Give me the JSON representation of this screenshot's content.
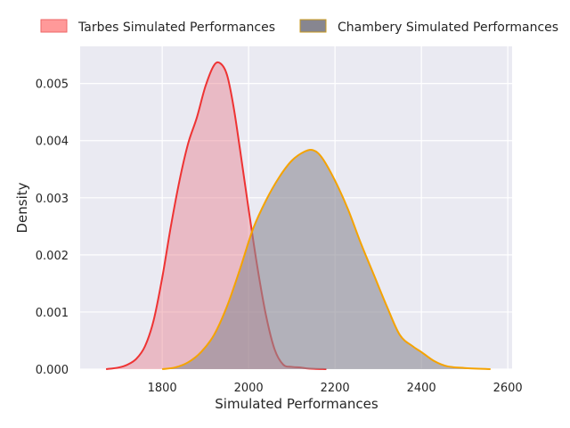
{
  "chart_data": {
    "type": "area",
    "title": "",
    "xlabel": "Simulated Performances",
    "ylabel": "Density",
    "xlim": [
      1610,
      2610
    ],
    "ylim": [
      0,
      0.00565
    ],
    "x_ticks": [
      1800,
      2000,
      2200,
      2400,
      2600
    ],
    "y_ticks": [
      0.0,
      0.001,
      0.002,
      0.003,
      0.004,
      0.005
    ],
    "x_tick_labels": [
      "1800",
      "2000",
      "2200",
      "2400",
      "2600"
    ],
    "y_tick_labels": [
      "0.000",
      "0.001",
      "0.002",
      "0.003",
      "0.004",
      "0.005"
    ],
    "grid": true,
    "legend_position": "top, outside plot, two columns",
    "style": {
      "plot_background": "#eaeaf2",
      "grid_color": "#ffffff"
    },
    "series": [
      {
        "name": "Tarbes Simulated Performances",
        "line_color": "#ee3333",
        "fill_color": "#e8808f",
        "fill_opacity": 0.45,
        "legend_fill": "#ff9999",
        "legend_edge": "#ee6666",
        "points": [
          [
            1670,
            0.0
          ],
          [
            1700,
            3e-05
          ],
          [
            1720,
            8e-05
          ],
          [
            1740,
            0.00018
          ],
          [
            1760,
            0.0004
          ],
          [
            1780,
            0.00085
          ],
          [
            1800,
            0.0016
          ],
          [
            1820,
            0.0025
          ],
          [
            1840,
            0.0033
          ],
          [
            1860,
            0.00395
          ],
          [
            1880,
            0.0044
          ],
          [
            1900,
            0.00495
          ],
          [
            1920,
            0.00532
          ],
          [
            1935,
            0.00535
          ],
          [
            1950,
            0.00515
          ],
          [
            1965,
            0.0046
          ],
          [
            1980,
            0.00385
          ],
          [
            2000,
            0.0028
          ],
          [
            2020,
            0.0018
          ],
          [
            2040,
            0.00095
          ],
          [
            2060,
            0.00035
          ],
          [
            2080,
            8e-05
          ],
          [
            2100,
            4e-05
          ],
          [
            2120,
            3e-05
          ],
          [
            2140,
            1e-05
          ],
          [
            2180,
            0.0
          ]
        ]
      },
      {
        "name": "Chambery Simulated Performances",
        "line_color": "#f5a300",
        "fill_color": "#8c8a95",
        "fill_opacity": 0.6,
        "legend_fill": "#878690",
        "legend_edge": "#c89a1e",
        "points": [
          [
            1800,
            0.0
          ],
          [
            1830,
            3e-05
          ],
          [
            1860,
            0.00012
          ],
          [
            1890,
            0.0003
          ],
          [
            1920,
            0.0006
          ],
          [
            1950,
            0.0011
          ],
          [
            1980,
            0.00175
          ],
          [
            2010,
            0.00245
          ],
          [
            2040,
            0.00295
          ],
          [
            2070,
            0.00335
          ],
          [
            2100,
            0.00365
          ],
          [
            2130,
            0.00381
          ],
          [
            2150,
            0.00383
          ],
          [
            2170,
            0.0037
          ],
          [
            2200,
            0.0033
          ],
          [
            2230,
            0.0028
          ],
          [
            2260,
            0.0022
          ],
          [
            2290,
            0.00165
          ],
          [
            2320,
            0.0011
          ],
          [
            2350,
            0.0006
          ],
          [
            2380,
            0.0004
          ],
          [
            2400,
            0.0003
          ],
          [
            2430,
            0.00014
          ],
          [
            2460,
            5e-05
          ],
          [
            2500,
            2e-05
          ],
          [
            2560,
            0.0
          ]
        ]
      }
    ]
  }
}
